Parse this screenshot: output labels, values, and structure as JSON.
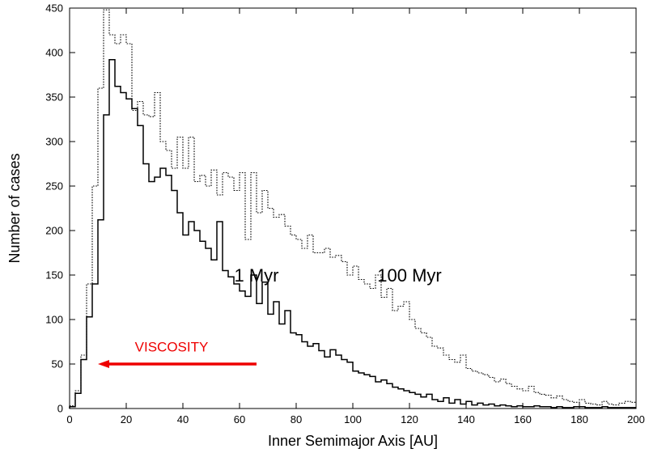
{
  "chart_data": {
    "type": "line",
    "subtype": "step-histogram",
    "title": "",
    "xlabel": "Inner Semimajor Axis [AU]",
    "ylabel": "Number of cases",
    "xlim": [
      0,
      200
    ],
    "ylim": [
      0,
      450
    ],
    "xticks": [
      0,
      20,
      40,
      60,
      80,
      100,
      120,
      140,
      160,
      180,
      200
    ],
    "yticks": [
      0,
      50,
      100,
      150,
      200,
      250,
      300,
      350,
      400,
      450
    ],
    "grid": false,
    "bin_width": 2,
    "bin_edges_start": 0,
    "series": [
      {
        "name": "1 Myr",
        "line_style": "solid",
        "values": [
          2,
          17,
          55,
          103,
          140,
          212,
          330,
          392,
          362,
          355,
          348,
          337,
          318,
          275,
          255,
          260,
          270,
          262,
          245,
          220,
          195,
          210,
          200,
          188,
          180,
          167,
          210,
          155,
          148,
          140,
          132,
          126,
          150,
          118,
          142,
          106,
          120,
          95,
          110,
          85,
          83,
          75,
          70,
          73,
          65,
          58,
          66,
          60,
          55,
          52,
          42,
          40,
          38,
          36,
          30,
          32,
          28,
          24,
          22,
          20,
          18,
          16,
          13,
          16,
          10,
          8,
          12,
          6,
          10,
          5,
          8,
          4,
          6,
          4,
          5,
          3,
          4,
          3,
          2,
          3,
          2,
          2,
          3,
          2,
          2,
          1,
          2,
          1,
          1,
          2,
          2,
          1,
          1,
          1,
          2,
          1,
          1,
          1,
          1,
          1
        ],
        "label_text": "1 Myr",
        "label_at": [
          66,
          150
        ]
      },
      {
        "name": "100 Myr",
        "line_style": "dotted",
        "values": [
          3,
          20,
          60,
          140,
          250,
          360,
          448,
          420,
          410,
          420,
          410,
          335,
          345,
          330,
          328,
          355,
          300,
          290,
          270,
          305,
          270,
          305,
          255,
          262,
          250,
          268,
          240,
          265,
          260,
          245,
          265,
          190,
          265,
          220,
          245,
          225,
          215,
          218,
          205,
          195,
          190,
          180,
          195,
          175,
          175,
          180,
          170,
          172,
          165,
          150,
          160,
          145,
          140,
          135,
          150,
          125,
          135,
          110,
          115,
          120,
          100,
          90,
          85,
          80,
          70,
          68,
          60,
          55,
          52,
          60,
          45,
          42,
          40,
          38,
          35,
          30,
          33,
          28,
          25,
          22,
          20,
          25,
          18,
          16,
          15,
          12,
          14,
          10,
          8,
          7,
          10,
          6,
          5,
          4,
          8,
          5,
          4,
          6,
          8,
          7
        ],
        "label_text": "100 Myr",
        "label_at": [
          120,
          150
        ]
      }
    ],
    "annotations": [
      {
        "text": "VISCOSITY",
        "color": "#ee0000",
        "arrow_from": [
          66,
          50
        ],
        "arrow_to": [
          10,
          50
        ],
        "text_at": [
          36,
          64
        ]
      }
    ]
  }
}
